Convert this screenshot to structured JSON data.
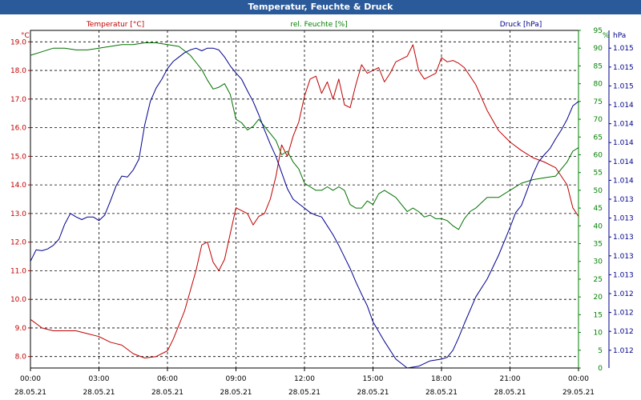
{
  "title": "Temperatur, Feuchte & Druck",
  "chart_data": {
    "type": "line",
    "title": "Temperatur, Feuchte & Druck",
    "x_ticks": [
      {
        "time": "00:00",
        "date": "28.05.21"
      },
      {
        "time": "03:00",
        "date": "28.05.21"
      },
      {
        "time": "06:00",
        "date": "28.05.21"
      },
      {
        "time": "09:00",
        "date": "28.05.21"
      },
      {
        "time": "12:00",
        "date": "28.05.21"
      },
      {
        "time": "15:00",
        "date": "28.05.21"
      },
      {
        "time": "18:00",
        "date": "28.05.21"
      },
      {
        "time": "21:00",
        "date": "28.05.21"
      },
      {
        "time": "00:00",
        "date": "29.05.21"
      }
    ],
    "xlim": [
      0,
      24
    ],
    "axes": {
      "temperature": {
        "label": "Temperatur [°C]",
        "unit": "°C",
        "color": "#c00000",
        "range": [
          7.6,
          19.4
        ],
        "ticks": [
          "8.0",
          "9.0",
          "10.0",
          "11.0",
          "12.0",
          "13.0",
          "14.0",
          "15.0",
          "16.0",
          "17.0",
          "18.0",
          "19.0"
        ]
      },
      "humidity": {
        "label": "rel. Feuchte [%]",
        "unit": "%",
        "color": "#008000",
        "range": [
          0,
          95
        ],
        "ticks": [
          "0",
          "5",
          "10",
          "15",
          "20",
          "25",
          "30",
          "35",
          "40",
          "45",
          "50",
          "55",
          "60",
          "65",
          "70",
          "75",
          "80",
          "85",
          "90",
          "95"
        ]
      },
      "pressure": {
        "label": "Druck [hPa]",
        "unit": "hPa",
        "color": "#00008b",
        "range": [
          1.0116,
          1.0154
        ],
        "ticks": [
          "1.012",
          "1.012",
          "1.012",
          "1.012",
          "1.013",
          "1.013",
          "1.013",
          "1.013",
          "1.013",
          "1.014",
          "1.014",
          "1.014",
          "1.014",
          "1.014",
          "1.015",
          "1.015",
          "1.015"
        ]
      }
    },
    "grid": true,
    "series": [
      {
        "name": "Temperatur [°C]",
        "axis": "temperature",
        "color": "#c00000",
        "x": [
          0,
          0.5,
          1,
          1.5,
          2,
          2.5,
          3,
          3.5,
          4,
          4.5,
          5,
          5.5,
          6,
          6.25,
          6.5,
          6.75,
          7,
          7.25,
          7.5,
          7.75,
          8,
          8.25,
          8.5,
          8.75,
          9,
          9.25,
          9.5,
          9.75,
          10,
          10.25,
          10.5,
          10.75,
          11,
          11.25,
          11.5,
          11.75,
          12,
          12.25,
          12.5,
          12.75,
          13,
          13.25,
          13.5,
          13.75,
          14,
          14.25,
          14.5,
          14.75,
          15,
          15.25,
          15.5,
          15.75,
          16,
          16.25,
          16.5,
          16.75,
          17,
          17.25,
          17.5,
          17.75,
          18,
          18.25,
          18.5,
          18.75,
          19,
          19.5,
          20,
          20.5,
          21,
          21.5,
          22,
          22.5,
          23,
          23.25,
          23.5,
          23.75,
          24
        ],
        "values": [
          9.3,
          9.0,
          8.9,
          8.9,
          8.9,
          8.8,
          8.7,
          8.5,
          8.4,
          8.1,
          7.95,
          8.0,
          8.2,
          8.6,
          9.1,
          9.6,
          10.3,
          11.0,
          11.9,
          12.0,
          11.3,
          11.0,
          11.4,
          12.3,
          13.2,
          13.1,
          13.0,
          12.6,
          12.9,
          13.0,
          13.5,
          14.3,
          15.4,
          15.0,
          15.7,
          16.2,
          17.1,
          17.7,
          17.8,
          17.2,
          17.6,
          17.0,
          17.7,
          16.8,
          16.7,
          17.5,
          18.2,
          17.9,
          18.0,
          18.1,
          17.6,
          17.9,
          18.3,
          18.4,
          18.5,
          18.9,
          18.0,
          17.7,
          17.8,
          17.9,
          18.45,
          18.3,
          18.35,
          18.25,
          18.1,
          17.5,
          16.6,
          15.9,
          15.5,
          15.2,
          14.95,
          14.8,
          14.6,
          14.3,
          14.0,
          13.2,
          12.9
        ]
      },
      {
        "name": "rel. Feuchte [%]",
        "axis": "humidity",
        "color": "#007000",
        "x": [
          0,
          0.5,
          1,
          1.5,
          2,
          2.5,
          3,
          3.5,
          4,
          4.5,
          5,
          5.5,
          6,
          6.5,
          7,
          7.25,
          7.5,
          7.75,
          8,
          8.25,
          8.5,
          8.75,
          9,
          9.25,
          9.5,
          9.75,
          10,
          10.25,
          10.5,
          10.75,
          11,
          11.25,
          11.5,
          11.75,
          12,
          12.25,
          12.5,
          12.75,
          13,
          13.25,
          13.5,
          13.75,
          14,
          14.25,
          14.5,
          14.75,
          15,
          15.25,
          15.5,
          15.75,
          16,
          16.25,
          16.5,
          16.75,
          17,
          17.25,
          17.5,
          17.75,
          18,
          18.25,
          18.5,
          18.75,
          19,
          19.25,
          19.5,
          19.75,
          20,
          20.5,
          21,
          21.5,
          22,
          22.5,
          23,
          23.25,
          23.5,
          23.75,
          24
        ],
        "values": [
          88,
          89,
          90,
          90,
          89.5,
          89.5,
          90,
          90.5,
          91,
          91,
          91.5,
          91.5,
          91,
          90.5,
          88,
          86,
          84,
          81,
          78.5,
          79,
          80,
          77,
          70,
          69,
          67,
          68,
          70,
          68,
          66,
          64,
          60,
          61,
          58,
          56,
          52,
          51,
          50,
          50,
          51,
          50,
          51,
          50,
          46,
          45,
          45,
          47,
          46,
          49,
          50,
          49,
          48,
          46,
          44,
          45,
          44,
          42.5,
          43,
          42,
          42,
          41.5,
          40,
          39,
          42,
          44,
          45,
          46.5,
          48,
          48,
          50,
          52,
          53,
          53.5,
          54,
          56,
          58,
          61,
          62
        ]
      },
      {
        "name": "Druck [hPa]",
        "axis": "pressure",
        "color": "#000090",
        "x": [
          0,
          0.25,
          0.5,
          0.75,
          1,
          1.25,
          1.5,
          1.75,
          2,
          2.25,
          2.5,
          2.75,
          3,
          3.25,
          3.5,
          3.75,
          4,
          4.25,
          4.5,
          4.75,
          5,
          5.25,
          5.5,
          5.75,
          6,
          6.25,
          6.5,
          6.75,
          7,
          7.25,
          7.5,
          7.75,
          8,
          8.25,
          8.5,
          8.75,
          9,
          9.25,
          9.5,
          9.75,
          10,
          10.25,
          10.5,
          10.75,
          11,
          11.25,
          11.5,
          11.75,
          12,
          12.25,
          12.5,
          12.75,
          13,
          13.25,
          13.5,
          13.75,
          14,
          14.25,
          14.5,
          14.75,
          15,
          15.5,
          16,
          16.5,
          17,
          17.5,
          18,
          18.25,
          18.5,
          18.75,
          19,
          19.5,
          20,
          20.5,
          21,
          21.25,
          21.5,
          21.75,
          22,
          22.25,
          22.5,
          22.75,
          23,
          23.25,
          23.5,
          23.75,
          24
        ],
        "values": [
          1.0128,
          1.01293,
          1.01292,
          1.01294,
          1.01298,
          1.01305,
          1.01322,
          1.01334,
          1.0133,
          1.01327,
          1.0133,
          1.0133,
          1.01326,
          1.01332,
          1.01348,
          1.01365,
          1.01376,
          1.01375,
          1.01383,
          1.01395,
          1.01433,
          1.0146,
          1.01475,
          1.01485,
          1.01497,
          1.01505,
          1.0151,
          1.01515,
          1.01518,
          1.0152,
          1.01517,
          1.0152,
          1.0152,
          1.01518,
          1.0151,
          1.015,
          1.01492,
          1.01485,
          1.01472,
          1.0146,
          1.01445,
          1.01428,
          1.01412,
          1.01398,
          1.0138,
          1.01362,
          1.0135,
          1.01345,
          1.0134,
          1.01335,
          1.01332,
          1.0133,
          1.0132,
          1.0131,
          1.01298,
          1.01285,
          1.01272,
          1.01257,
          1.01243,
          1.0123,
          1.01212,
          1.0119,
          1.0117,
          1.0116,
          1.01162,
          1.01168,
          1.0117,
          1.01172,
          1.0118,
          1.01194,
          1.0121,
          1.0124,
          1.0126,
          1.01287,
          1.01318,
          1.01335,
          1.01343,
          1.0136,
          1.01378,
          1.01392,
          1.014,
          1.01407,
          1.01418,
          1.01428,
          1.0144,
          1.01455,
          1.0146
        ]
      }
    ]
  }
}
